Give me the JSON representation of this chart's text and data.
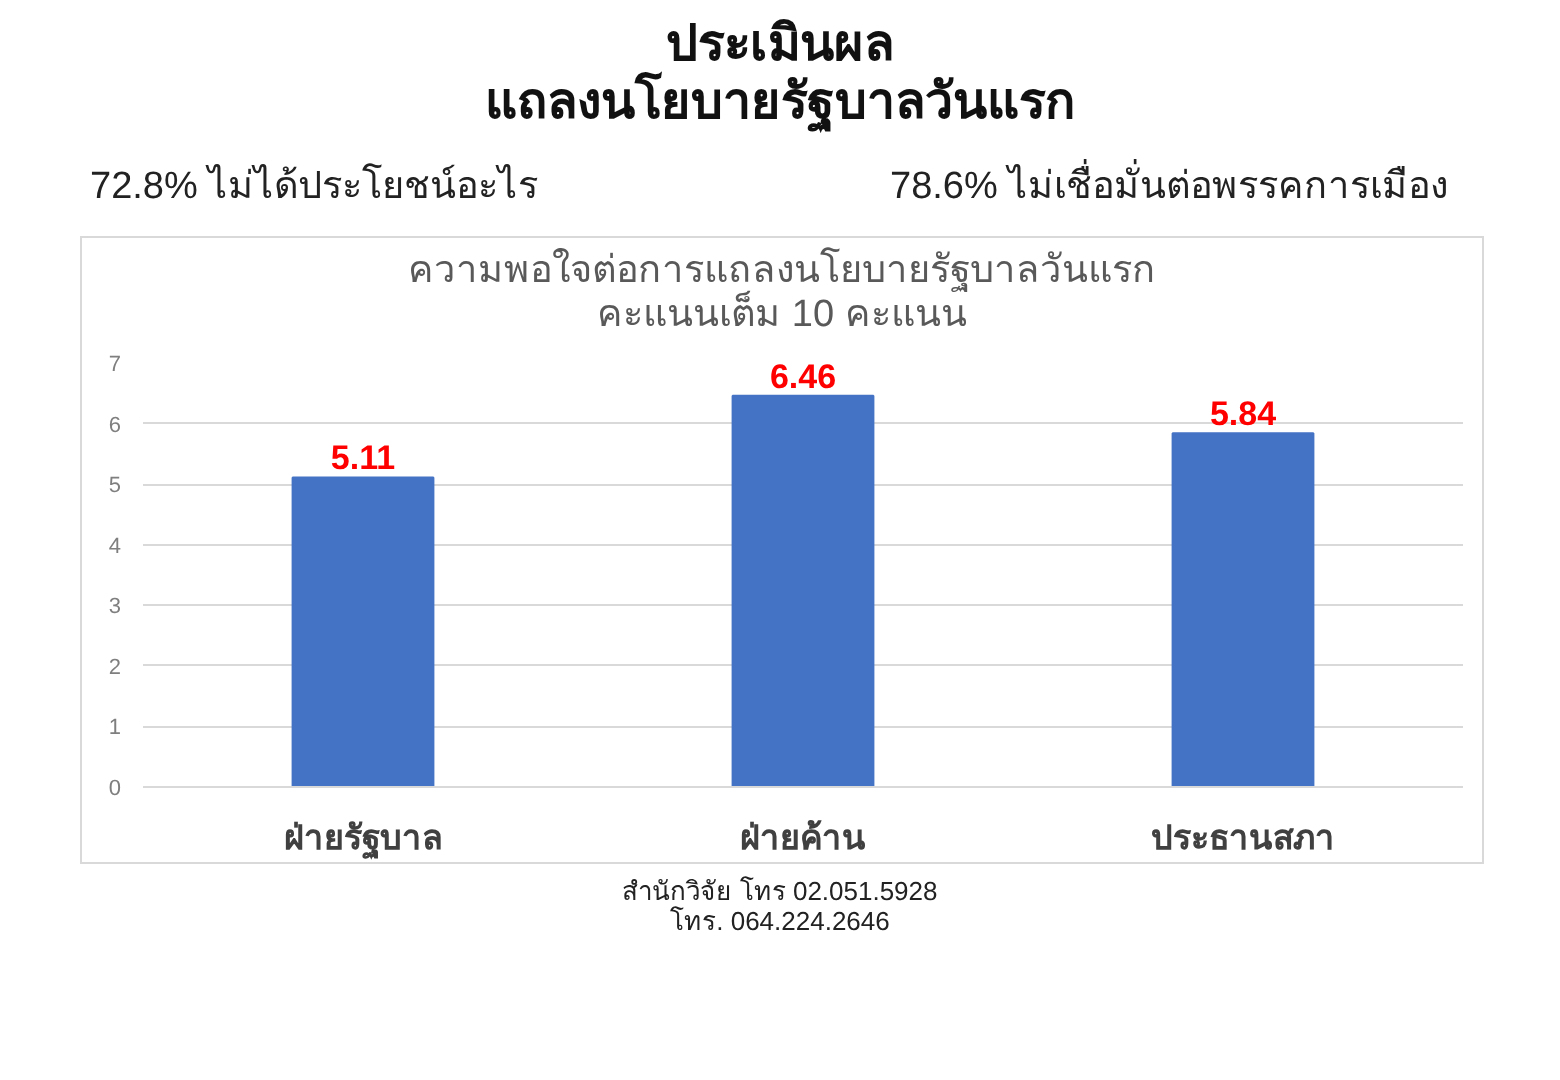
{
  "chart_data": {
    "type": "bar",
    "title": "ประเมินผล\nแถลงนโยบายรัฐบาลวันแรก",
    "subtitle": "ความพอใจต่อการแถลงนโยบายรัฐบาลวันแรก\nคะแนนเต็ม 10 คะแนน",
    "categories": [
      "ฝ่ายรัฐบาล",
      "ฝ่ายค้าน",
      "ประธานสภา"
    ],
    "values": [
      5.11,
      6.46,
      5.84
    ],
    "color": "#4472c4",
    "data_labels": true,
    "ylim": [
      0,
      7
    ],
    "yticks": [
      0,
      1,
      2,
      3,
      4,
      5,
      6,
      7
    ],
    "grid": "y",
    "annotations": [
      "72.8% ไม่ได้ประโยชน์อะไร",
      "78.6% ไม่เชื่อมั่นต่อพรรคการเมือง",
      "สำนักวิจัย โทร 02.051.5928",
      "โทร. 064.224.2646"
    ]
  }
}
